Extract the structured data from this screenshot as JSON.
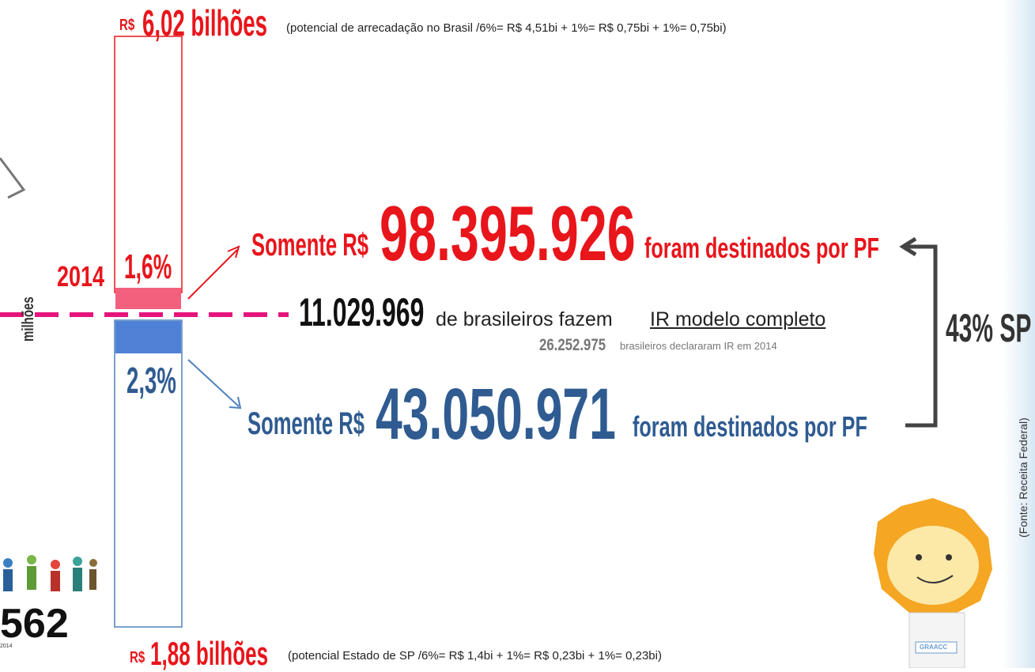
{
  "top_total": {
    "currency": "R$",
    "amount": "6,02 bilhões",
    "note": "(potencial de arrecadação no Brasil /6%= R$ 4,51bi + 1%= R$ 0,75bi + 1%= 0,75bi)"
  },
  "bottom_total": {
    "currency": "R$",
    "amount": "1,88 bilhões",
    "note": "(potencial Estado de SP /6%= R$ 1,4bi + 1%= R$ 0,23bi + 1%= 0,23bi)"
  },
  "year": "2014",
  "axis_label": "milhões",
  "bar_top_pct": "1,6%",
  "bar_bottom_pct": "2,3%",
  "brazil": {
    "prefix": "Somente R$",
    "amount": "98.395.926",
    "suffix": "foram destinados por PF"
  },
  "sp": {
    "prefix": "Somente R$",
    "amount": "43.050.971",
    "suffix": "foram destinados por PF"
  },
  "declarants": {
    "count": "11.029.969",
    "text": "de brasileiros fazem",
    "link": "IR modelo completo",
    "total": "26.252.975",
    "total_text": "brasileiros declararam IR em 2014"
  },
  "sp_share": "43% SP",
  "source": "(Fonte: Receita Federal)",
  "left_fragment": {
    "number": "562",
    "year": "2014"
  },
  "mascot_badge": "GRAACC"
}
